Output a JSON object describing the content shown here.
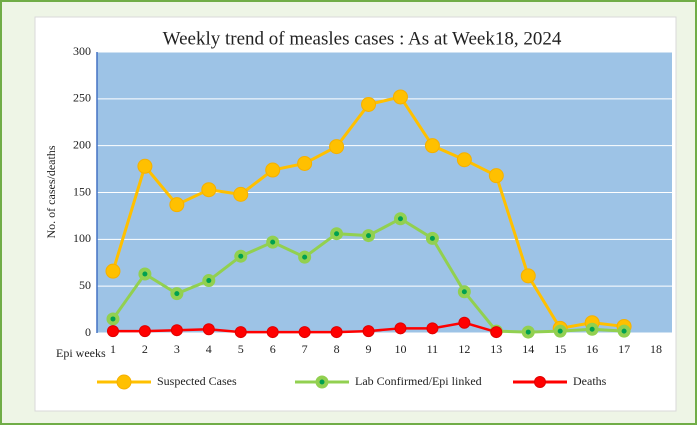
{
  "chart_data": {
    "type": "line",
    "title": "Weekly trend of measles cases : As at Week18, 2024",
    "y_label": "No. of cases/deaths",
    "x_label": "Epi weeks",
    "categories": [
      1,
      2,
      3,
      4,
      5,
      6,
      7,
      8,
      9,
      10,
      11,
      12,
      13,
      14,
      15,
      16,
      17,
      18
    ],
    "series": [
      {
        "name": "Suspected Cases",
        "color": "#ffc000",
        "values": [
          66,
          178,
          137,
          153,
          148,
          174,
          181,
          199,
          244,
          252,
          200,
          185,
          168,
          61,
          5,
          11,
          7,
          null
        ]
      },
      {
        "name": "Lab Confirmed/Epi linked",
        "color": "#92d050",
        "values": [
          15,
          63,
          42,
          56,
          82,
          97,
          81,
          106,
          104,
          122,
          101,
          44,
          2,
          1,
          2,
          4,
          2,
          null
        ]
      },
      {
        "name": "Deaths",
        "color": "#ff0000",
        "values": [
          2,
          2,
          3,
          4,
          1,
          1,
          1,
          1,
          2,
          5,
          5,
          11,
          1,
          null,
          null,
          null,
          null,
          null
        ]
      }
    ],
    "ylim": [
      0,
      300
    ],
    "yticks": [
      0,
      50,
      100,
      150,
      200,
      250,
      300
    ],
    "grid": true
  }
}
